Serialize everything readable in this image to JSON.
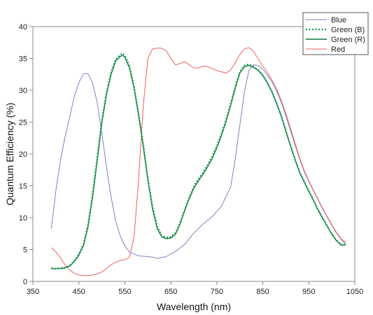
{
  "chart_data": {
    "type": "line",
    "title": "",
    "xlabel": "Wavelength (nm)",
    "ylabel": "Quantum Efficiency (%)",
    "xlim": [
      350,
      1050
    ],
    "ylim": [
      0,
      40
    ],
    "x_ticks": [
      "350",
      "450",
      "550",
      "650",
      "750",
      "850",
      "950",
      "1050"
    ],
    "y_ticks": [
      "0",
      "5",
      "10",
      "15",
      "20",
      "25",
      "30",
      "35",
      "40"
    ],
    "grid": false,
    "legend_position": "top-right",
    "series": [
      {
        "name": "Blue",
        "color": "#8080c0",
        "dash": "solid",
        "x": [
          390,
          400,
          410,
          420,
          430,
          440,
          450,
          460,
          470,
          480,
          490,
          500,
          510,
          520,
          530,
          540,
          550,
          560,
          580,
          600,
          610,
          620,
          640,
          660,
          680,
          700,
          720,
          740,
          760,
          780,
          790,
          800,
          810,
          820,
          830,
          840,
          850,
          860,
          870,
          880,
          890,
          900,
          910,
          920,
          930,
          940,
          950,
          960,
          970,
          980,
          990,
          1000,
          1010,
          1020,
          1030
        ],
        "y": [
          8.3,
          14.3,
          19,
          22.7,
          25.8,
          29,
          31.2,
          32.6,
          32.6,
          31.1,
          28,
          23.2,
          18,
          13.3,
          9.5,
          7.1,
          5.6,
          4.6,
          4.0,
          3.9,
          3.8,
          3.6,
          3.9,
          4.7,
          5.8,
          7.6,
          9.0,
          10.2,
          11.8,
          14.8,
          19.2,
          24.5,
          29.8,
          33.2,
          34.0,
          33.9,
          33.3,
          32.4,
          31.3,
          29.9,
          28.1,
          26.0,
          23.7,
          21.4,
          19.2,
          17.2,
          15.7,
          14.2,
          12.8,
          11.4,
          10.1,
          8.8,
          7.6,
          6.6,
          5.9
        ]
      },
      {
        "name": "Green (B)",
        "color": "#1a9a50",
        "dash": "dotted",
        "x": [
          390,
          400,
          410,
          420,
          430,
          440,
          450,
          460,
          470,
          480,
          490,
          500,
          510,
          520,
          530,
          540,
          545,
          550,
          560,
          570,
          580,
          590,
          600,
          610,
          620,
          630,
          640,
          650,
          660,
          670,
          680,
          690,
          700,
          710,
          720,
          730,
          740,
          750,
          760,
          770,
          780,
          790,
          800,
          810,
          820,
          830,
          840,
          850,
          860,
          870,
          880,
          890,
          900,
          910,
          920,
          930,
          940,
          950,
          960,
          970,
          980,
          990,
          1000,
          1010,
          1020,
          1030
        ],
        "y": [
          2.1,
          2.0,
          2.1,
          2.2,
          2.5,
          3.2,
          4.3,
          5.9,
          9.0,
          13.8,
          19.5,
          25.3,
          29.6,
          32.8,
          34.9,
          35.6,
          35.8,
          35.5,
          33.8,
          30.6,
          26.3,
          21.5,
          16.2,
          11.8,
          8.7,
          7.2,
          6.9,
          7.0,
          7.6,
          9.2,
          11.3,
          13.2,
          14.9,
          16.1,
          17.1,
          18.3,
          19.6,
          21.3,
          23.2,
          25.4,
          27.9,
          30.6,
          32.9,
          33.9,
          34.1,
          33.7,
          33.2,
          32.4,
          31.2,
          29.8,
          28.0,
          26.0,
          23.7,
          21.4,
          19.2,
          17.2,
          15.7,
          14.2,
          12.8,
          11.3,
          10.0,
          8.7,
          7.5,
          6.5,
          5.8,
          5.8
        ]
      },
      {
        "name": "Green (R)",
        "color": "#0e7a40",
        "dash": "solid",
        "x": [
          390,
          400,
          410,
          420,
          430,
          440,
          450,
          460,
          470,
          480,
          490,
          500,
          510,
          520,
          530,
          540,
          545,
          550,
          560,
          570,
          580,
          590,
          600,
          610,
          620,
          630,
          640,
          650,
          660,
          670,
          680,
          690,
          700,
          710,
          720,
          730,
          740,
          750,
          760,
          770,
          780,
          790,
          800,
          810,
          820,
          830,
          840,
          850,
          860,
          870,
          880,
          890,
          900,
          910,
          920,
          930,
          940,
          950,
          960,
          970,
          980,
          990,
          1000,
          1010,
          1020,
          1030
        ],
        "y": [
          2.0,
          2.0,
          2.0,
          2.1,
          2.4,
          3.1,
          4.1,
          5.6,
          8.6,
          13.3,
          19.0,
          24.9,
          29.3,
          32.5,
          34.6,
          35.3,
          35.5,
          35.2,
          33.5,
          30.3,
          26.0,
          21.2,
          15.9,
          11.4,
          8.4,
          7.0,
          6.7,
          6.8,
          7.4,
          9.0,
          11.1,
          13.0,
          14.6,
          15.8,
          16.8,
          18.0,
          19.3,
          21.0,
          22.9,
          25.1,
          27.6,
          30.3,
          32.7,
          33.7,
          33.9,
          33.6,
          33.1,
          32.3,
          31.1,
          29.7,
          27.9,
          25.9,
          23.6,
          21.3,
          19.1,
          17.1,
          15.6,
          14.1,
          12.7,
          11.2,
          9.9,
          8.6,
          7.4,
          6.4,
          5.7,
          5.7
        ]
      },
      {
        "name": "Red",
        "color": "#f06060",
        "dash": "solid",
        "x": [
          390,
          400,
          410,
          420,
          430,
          440,
          450,
          460,
          470,
          480,
          490,
          500,
          510,
          520,
          530,
          540,
          550,
          560,
          570,
          580,
          590,
          600,
          610,
          620,
          630,
          640,
          650,
          660,
          670,
          680,
          690,
          700,
          710,
          720,
          730,
          740,
          750,
          760,
          770,
          780,
          790,
          800,
          810,
          820,
          830,
          840,
          850,
          860,
          870,
          880,
          890,
          900,
          910,
          920,
          930,
          940,
          950,
          960,
          970,
          980,
          990,
          1000,
          1010,
          1020,
          1030
        ],
        "y": [
          5.3,
          4.6,
          3.7,
          2.6,
          1.8,
          1.3,
          1.0,
          0.9,
          0.9,
          1.0,
          1.2,
          1.5,
          2.0,
          2.6,
          3.0,
          3.3,
          3.4,
          3.8,
          7.0,
          16.0,
          27.5,
          35.0,
          36.5,
          36.6,
          36.6,
          36.2,
          35.0,
          34.0,
          34.2,
          34.5,
          34.0,
          33.5,
          33.5,
          33.8,
          33.7,
          33.4,
          33.1,
          32.9,
          32.7,
          33.2,
          34.3,
          35.6,
          36.5,
          36.7,
          36.1,
          34.9,
          33.8,
          32.8,
          31.6,
          30.2,
          28.4,
          26.4,
          24.1,
          21.7,
          19.4,
          17.4,
          15.8,
          14.3,
          12.9,
          11.5,
          10.2,
          8.9,
          7.7,
          6.7,
          6.1
        ]
      }
    ]
  }
}
